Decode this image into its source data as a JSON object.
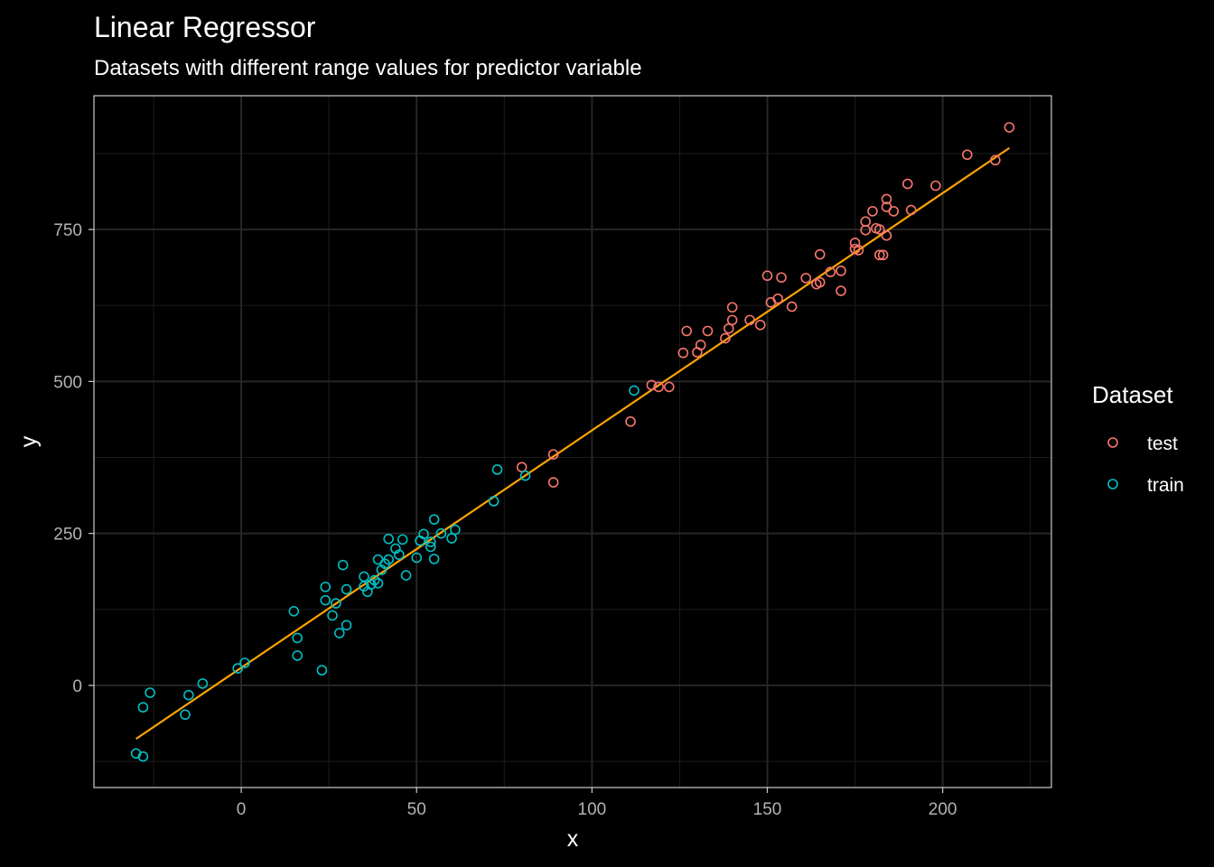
{
  "chart_data": {
    "type": "scatter",
    "title": "Linear Regressor",
    "subtitle": "Datasets with different range values for predictor variable",
    "xlabel": "x",
    "ylabel": "y",
    "xlim": [
      -42,
      231
    ],
    "ylim": [
      -168,
      970
    ],
    "x_ticks": [
      0,
      50,
      100,
      150,
      200
    ],
    "y_ticks": [
      0,
      250,
      500,
      750
    ],
    "grid": true,
    "legend": {
      "title": "Dataset",
      "position": "right"
    },
    "fit_line": {
      "color": "#ffa500",
      "x": [
        -30,
        219
      ],
      "y": [
        -88,
        884
      ]
    },
    "series": [
      {
        "name": "test",
        "color": "#f8766d",
        "points": [
          [
            80,
            359
          ],
          [
            89,
            380
          ],
          [
            89,
            334
          ],
          [
            111,
            434
          ],
          [
            117,
            494
          ],
          [
            119,
            491
          ],
          [
            122,
            491
          ],
          [
            126,
            547
          ],
          [
            127,
            583
          ],
          [
            130,
            548
          ],
          [
            131,
            560
          ],
          [
            133,
            583
          ],
          [
            138,
            571
          ],
          [
            139,
            587
          ],
          [
            140,
            601
          ],
          [
            140,
            622
          ],
          [
            145,
            601
          ],
          [
            148,
            593
          ],
          [
            150,
            674
          ],
          [
            151,
            630
          ],
          [
            153,
            636
          ],
          [
            154,
            671
          ],
          [
            157,
            623
          ],
          [
            161,
            670
          ],
          [
            164,
            660
          ],
          [
            165,
            709
          ],
          [
            165,
            663
          ],
          [
            168,
            680
          ],
          [
            171,
            682
          ],
          [
            171,
            649
          ],
          [
            175,
            718
          ],
          [
            175,
            728
          ],
          [
            176,
            716
          ],
          [
            178,
            749
          ],
          [
            178,
            763
          ],
          [
            180,
            780
          ],
          [
            181,
            752
          ],
          [
            182,
            750
          ],
          [
            182,
            708
          ],
          [
            183,
            708
          ],
          [
            184,
            740
          ],
          [
            184,
            787
          ],
          [
            184,
            800
          ],
          [
            186,
            780
          ],
          [
            190,
            825
          ],
          [
            191,
            782
          ],
          [
            198,
            822
          ],
          [
            207,
            873
          ],
          [
            215,
            864
          ],
          [
            219,
            918
          ]
        ]
      },
      {
        "name": "train",
        "color": "#00bfc4",
        "points": [
          [
            -30,
            -112
          ],
          [
            -28,
            -117
          ],
          [
            -28,
            -36
          ],
          [
            -26,
            -12
          ],
          [
            -16,
            -48
          ],
          [
            -15,
            -16
          ],
          [
            -11,
            3
          ],
          [
            -1,
            28
          ],
          [
            1,
            37
          ],
          [
            15,
            122
          ],
          [
            16,
            78
          ],
          [
            16,
            49
          ],
          [
            23,
            25
          ],
          [
            24,
            140
          ],
          [
            24,
            162
          ],
          [
            26,
            115
          ],
          [
            27,
            135
          ],
          [
            28,
            86
          ],
          [
            29,
            198
          ],
          [
            30,
            99
          ],
          [
            30,
            158
          ],
          [
            35,
            163
          ],
          [
            35,
            179
          ],
          [
            36,
            154
          ],
          [
            37,
            166
          ],
          [
            38,
            173
          ],
          [
            39,
            168
          ],
          [
            39,
            207
          ],
          [
            40,
            190
          ],
          [
            41,
            200
          ],
          [
            42,
            207
          ],
          [
            42,
            241
          ],
          [
            44,
            225
          ],
          [
            45,
            215
          ],
          [
            46,
            240
          ],
          [
            47,
            181
          ],
          [
            50,
            210
          ],
          [
            51,
            238
          ],
          [
            52,
            249
          ],
          [
            54,
            228
          ],
          [
            54,
            236
          ],
          [
            55,
            208
          ],
          [
            55,
            273
          ],
          [
            57,
            250
          ],
          [
            60,
            242
          ],
          [
            61,
            256
          ],
          [
            72,
            303
          ],
          [
            73,
            355
          ],
          [
            81,
            345
          ],
          [
            112,
            485
          ]
        ]
      }
    ]
  }
}
